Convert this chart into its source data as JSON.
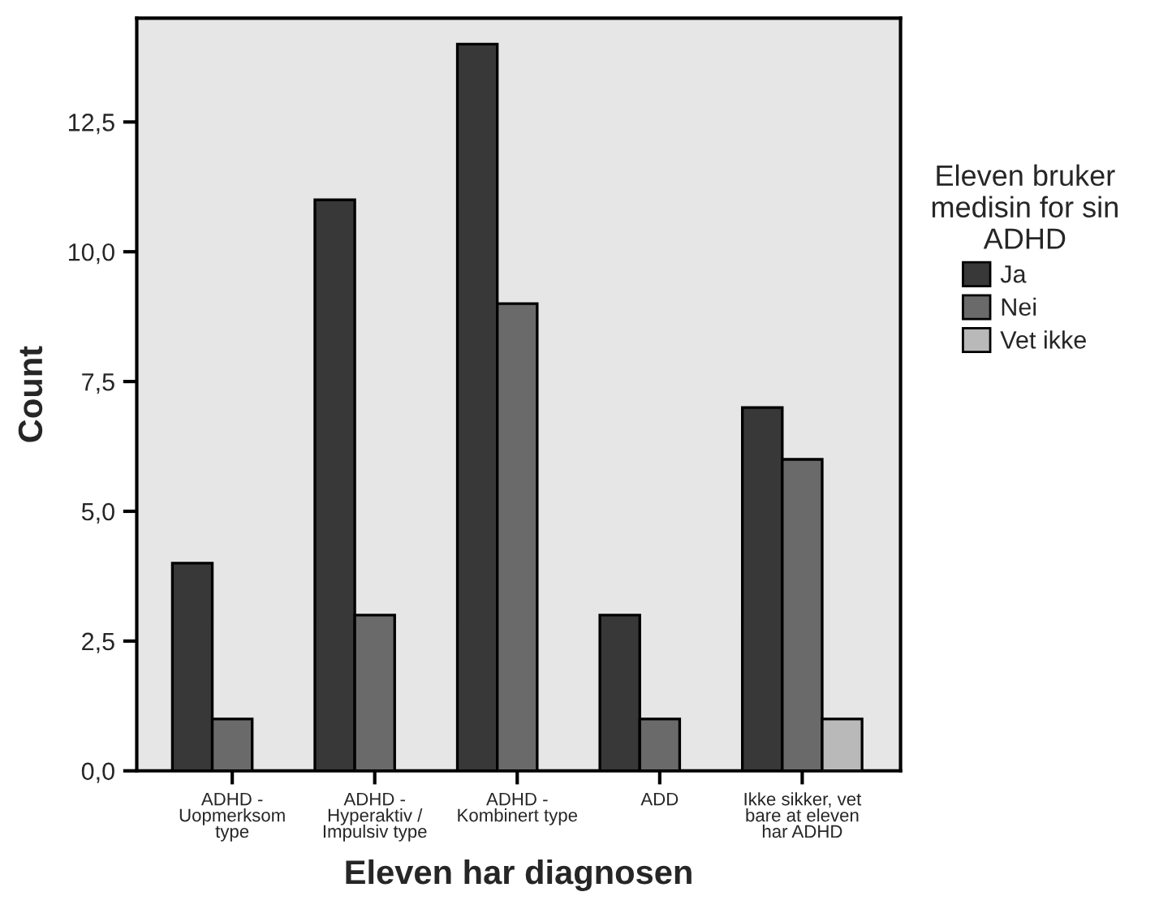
{
  "chart_data": {
    "type": "bar",
    "xlabel": "Eleven har diagnosen",
    "ylabel": "Count",
    "legend_title": "Eleven bruker\nmedisin for sin\nADHD",
    "categories": [
      "ADHD -\nUopmerksom\ntype",
      "ADHD -\nHyperaktiv /\nImpulsiv type",
      "ADHD -\nKombinert type",
      "ADD",
      "Ikke sikker, vet\nbare at eleven\nhar ADHD"
    ],
    "series": [
      {
        "name": "Ja",
        "color": "#383838",
        "values": [
          4,
          11,
          14,
          3,
          7
        ]
      },
      {
        "name": "Nei",
        "color": "#6a6a6a",
        "values": [
          1,
          3,
          9,
          1,
          6
        ]
      },
      {
        "name": "Vet ikke",
        "color": "#b9b9b9",
        "values": [
          null,
          null,
          null,
          null,
          1
        ]
      }
    ],
    "ylim": [
      0,
      14.5
    ],
    "yticks": [
      {
        "value": 0,
        "label": "0,0"
      },
      {
        "value": 2.5,
        "label": "2,5"
      },
      {
        "value": 5,
        "label": "5,0"
      },
      {
        "value": 7.5,
        "label": "7,5"
      },
      {
        "value": 10,
        "label": "10,0"
      },
      {
        "value": 12.5,
        "label": "12,5"
      }
    ],
    "grid": false,
    "legend": "right"
  }
}
